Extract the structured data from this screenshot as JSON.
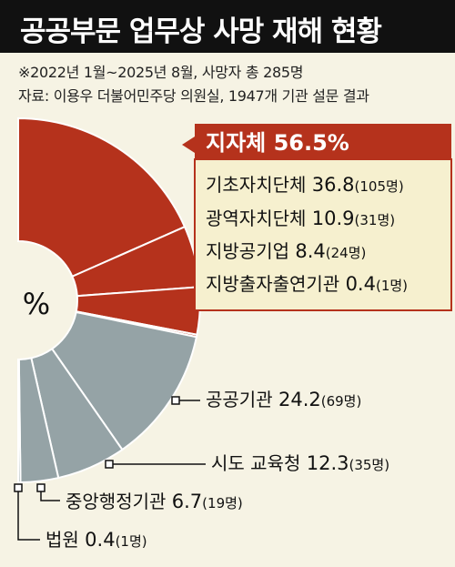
{
  "header": {
    "title": "공공부문 업무상 사망 재해 현황"
  },
  "notes": {
    "line1": "※2022년 1월~2025년 8월, 사망자 총 285명",
    "line2": "자료: 이용우 더불어민주당 의원실, 1947개 기관 설문 결과"
  },
  "chart_data": {
    "type": "pie",
    "center_label": "%",
    "total_count": 285,
    "colors": {
      "local": "#b5321c",
      "other": "#95a3a6",
      "callout_bg": "#f6f0cf",
      "callout_border": "#b5321c"
    },
    "group": {
      "name": "지자체",
      "value": 56.5,
      "label": "지자체 56.5%"
    },
    "slices": [
      {
        "name": "기초자치단체",
        "value": 36.8,
        "count": 105,
        "group": "local",
        "num": "36.8",
        "cnt": "(105명)"
      },
      {
        "name": "광역자치단체",
        "value": 10.9,
        "count": 31,
        "group": "local",
        "num": "10.9",
        "cnt": "(31명)"
      },
      {
        "name": "지방공기업",
        "value": 8.4,
        "count": 24,
        "group": "local",
        "num": "8.4",
        "cnt": "(24명)"
      },
      {
        "name": "지방출자출연기관",
        "value": 0.4,
        "count": 1,
        "group": "local",
        "num": "0.4",
        "cnt": "(1명)"
      },
      {
        "name": "공공기관",
        "value": 24.2,
        "count": 69,
        "group": "other",
        "num": "24.2",
        "cnt": "(69명)"
      },
      {
        "name": "시도 교육청",
        "value": 12.3,
        "count": 35,
        "group": "other",
        "num": "12.3",
        "cnt": "(35명)"
      },
      {
        "name": "중앙행정기관",
        "value": 6.7,
        "count": 19,
        "group": "other",
        "num": "6.7",
        "cnt": "(19명)"
      },
      {
        "name": "법원",
        "value": 0.4,
        "count": 1,
        "group": "other",
        "num": "0.4",
        "cnt": "(1명)"
      }
    ]
  }
}
